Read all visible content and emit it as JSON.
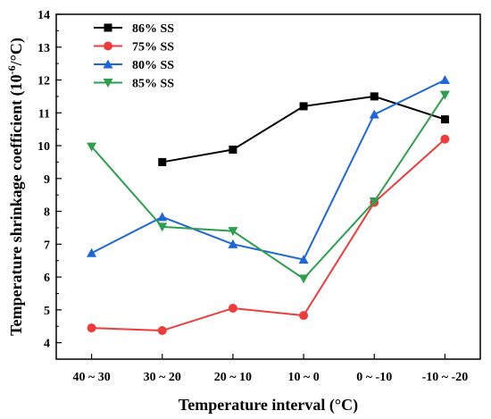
{
  "chart_data": {
    "type": "line",
    "categories": [
      "40 ~ 30",
      "30 ~ 20",
      "20 ~ 10",
      "10 ~ 0",
      "0 ~ -10",
      "-10 ~ -20"
    ],
    "xlabel": "Temperature interval (°C)",
    "ylabel_prefix": "Temperature shrinkage coefficient (10",
    "ylabel_sup": "-6",
    "ylabel_suffix": "/°C)",
    "ylim": [
      3.5,
      14
    ],
    "yticks": [
      4,
      5,
      6,
      7,
      8,
      9,
      10,
      11,
      12,
      13,
      14
    ],
    "grid": false,
    "legend_position": "top-left",
    "series": [
      {
        "name": "86% SS",
        "color": "#000000",
        "marker": "square",
        "values": [
          null,
          9.5,
          9.88,
          11.2,
          11.5,
          10.8
        ]
      },
      {
        "name": "75% SS",
        "color": "#ee3b3b",
        "marker": "circle",
        "values": [
          4.45,
          4.37,
          5.05,
          4.83,
          8.27,
          10.2
        ]
      },
      {
        "name": "80% SS",
        "color": "#1f66d6",
        "marker": "triangle-up",
        "values": [
          6.73,
          7.83,
          7.0,
          6.53,
          10.95,
          12.0
        ]
      },
      {
        "name": "85% SS",
        "color": "#2e9e4f",
        "marker": "triangle-down",
        "values": [
          9.97,
          7.53,
          7.4,
          5.95,
          8.3,
          11.55
        ]
      }
    ]
  }
}
